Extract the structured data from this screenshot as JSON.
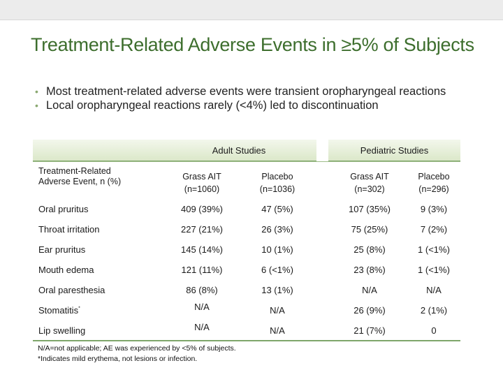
{
  "slide": {
    "title": "Treatment-Related Adverse Events in ≥5% of Subjects",
    "bullets": [
      "Most treatment-related adverse events were transient oropharyngeal reactions",
      "Local oropharyngeal reactions rarely (<4%) led to discontinuation"
    ]
  },
  "table": {
    "group_headers": {
      "adult": "Adult Studies",
      "pediatric": "Pediatric Studies"
    },
    "row_header": "Treatment-Related Adverse Event, n (%)",
    "columns": [
      {
        "name": "Grass AIT",
        "n": "(n=1060)"
      },
      {
        "name": "Placebo",
        "n": "(n=1036)"
      },
      {
        "name": "Grass AIT",
        "n": "(n=302)"
      },
      {
        "name": "Placebo",
        "n": "(n=296)"
      }
    ],
    "rows": [
      {
        "event": "Oral pruritus",
        "sup": "",
        "values": [
          "409 (39%)",
          "47 (5%)",
          "107 (35%)",
          "9 (3%)"
        ]
      },
      {
        "event": "Throat irritation",
        "sup": "",
        "values": [
          "227 (21%)",
          "26 (3%)",
          "75 (25%)",
          "7 (2%)"
        ]
      },
      {
        "event": "Ear pruritus",
        "sup": "",
        "values": [
          "145 (14%)",
          "10 (1%)",
          "25 (8%)",
          "1 (<1%)"
        ]
      },
      {
        "event": "Mouth edema",
        "sup": "",
        "values": [
          "121 (11%)",
          "6 (<1%)",
          "23 (8%)",
          "1 (<1%)"
        ]
      },
      {
        "event": "Oral paresthesia",
        "sup": "",
        "values": [
          "86 (8%)",
          "13 (1%)",
          "N/A",
          "N/A"
        ]
      },
      {
        "event": "Stomatitis",
        "sup": "*",
        "values": [
          "N/A",
          "N/A",
          "26 (9%)",
          "2 (1%)"
        ]
      },
      {
        "event": "Lip swelling",
        "sup": "",
        "values": [
          "N/A",
          "N/A",
          "21 (7%)",
          "0"
        ]
      }
    ]
  },
  "footnotes": [
    "N/A=not applicable; AE was experienced by <5% of subjects.",
    "*Indicates mild erythema, not lesions or infection."
  ]
}
